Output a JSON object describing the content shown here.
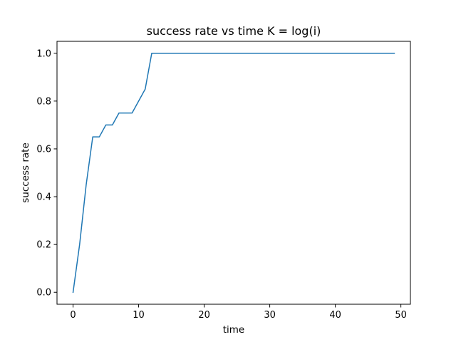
{
  "chart_data": {
    "type": "line",
    "title": "success rate vs time K = log(i)",
    "xlabel": "time",
    "ylabel": "success rate",
    "xlim": [
      -2.45,
      51.45
    ],
    "ylim": [
      -0.05,
      1.05
    ],
    "xticks": [
      0,
      10,
      20,
      30,
      40,
      50
    ],
    "xtick_labels": [
      "0",
      "10",
      "20",
      "30",
      "40",
      "50"
    ],
    "yticks": [
      0.0,
      0.2,
      0.4,
      0.6,
      0.8,
      1.0
    ],
    "ytick_labels": [
      "0.0",
      "0.2",
      "0.4",
      "0.6",
      "0.8",
      "1.0"
    ],
    "grid": false,
    "series": [
      {
        "color": "#1f77b4",
        "x": [
          0,
          1,
          2,
          3,
          4,
          5,
          6,
          7,
          8,
          9,
          10,
          11,
          12,
          13,
          14,
          15,
          16,
          17,
          18,
          19,
          20,
          21,
          22,
          23,
          24,
          25,
          26,
          27,
          28,
          29,
          30,
          31,
          32,
          33,
          34,
          35,
          36,
          37,
          38,
          39,
          40,
          41,
          42,
          43,
          44,
          45,
          46,
          47,
          48,
          49
        ],
        "y": [
          0.0,
          0.2,
          0.45,
          0.65,
          0.65,
          0.7,
          0.7,
          0.75,
          0.75,
          0.75,
          0.8,
          0.85,
          1.0,
          1.0,
          1.0,
          1.0,
          1.0,
          1.0,
          1.0,
          1.0,
          1.0,
          1.0,
          1.0,
          1.0,
          1.0,
          1.0,
          1.0,
          1.0,
          1.0,
          1.0,
          1.0,
          1.0,
          1.0,
          1.0,
          1.0,
          1.0,
          1.0,
          1.0,
          1.0,
          1.0,
          1.0,
          1.0,
          1.0,
          1.0,
          1.0,
          1.0,
          1.0,
          1.0,
          1.0,
          1.0
        ]
      }
    ]
  }
}
